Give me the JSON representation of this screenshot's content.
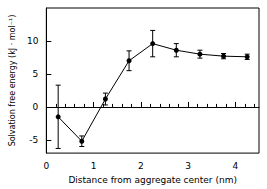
{
  "chart_data": {
    "type": "line",
    "xlabel": "Distance from aggregate center (nm)",
    "ylabel": "Solvation free energy (kJ · mol⁻¹)",
    "x": [
      0.25,
      0.75,
      1.25,
      1.75,
      2.25,
      2.75,
      3.25,
      3.75,
      4.25
    ],
    "values": [
      -1.5,
      -5.2,
      1.2,
      7.0,
      9.6,
      8.6,
      8.0,
      7.7,
      7.6
    ],
    "errors": [
      4.8,
      0.8,
      0.9,
      1.5,
      2.0,
      1.0,
      0.6,
      0.4,
      0.4
    ],
    "color": "#000000",
    "marker": "circle",
    "xlim": [
      0,
      4.5
    ],
    "xticks": [
      0,
      1,
      2,
      3,
      4
    ],
    "ylim": [
      -7,
      15
    ],
    "yticks": [
      -5,
      0,
      5,
      10
    ],
    "grid": false
  }
}
